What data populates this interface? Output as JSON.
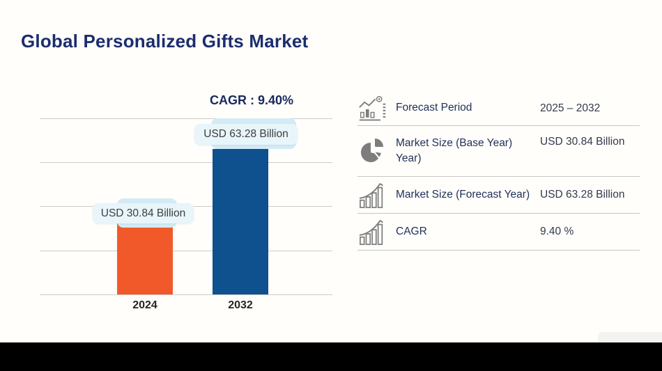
{
  "title": "Global Personalized Gifts Market",
  "chart_data": {
    "type": "bar",
    "title": "Global Personalized Gifts Market",
    "annotation": "CAGR : 9.40%",
    "categories": [
      "2024",
      "2032"
    ],
    "values": [
      30.84,
      63.28
    ],
    "unit": "USD Billion",
    "bar_labels": [
      "USD 30.84 Billion",
      "USD 63.28 Billion"
    ],
    "bar_colors": [
      "#f1592a",
      "#0f508f"
    ],
    "ylim": [
      0,
      80
    ],
    "grid": true,
    "gridline_count": 5,
    "legend_position": "none",
    "xlabel": "",
    "ylabel": ""
  },
  "info_table": {
    "rows": [
      {
        "icon": "forecast-trend-icon",
        "label": "Forecast Period",
        "value": "2025 – 2032"
      },
      {
        "icon": "pie-chart-icon",
        "label": "Market Size (Base Year) Year)",
        "value": "USD 30.84 Billion"
      },
      {
        "icon": "growth-bars-icon",
        "label": "Market Size (Forecast Year)",
        "value": "USD 63.28 Billion"
      },
      {
        "icon": "growth-bars-icon",
        "label": "CAGR",
        "value": "9.40 %"
      }
    ]
  },
  "colors": {
    "accent_orange": "#f1592a",
    "accent_blue": "#0f508f",
    "navy_text": "#1c2d6e",
    "pill_bg": "#e8f5fa",
    "pill_back_bg": "#d3ebf4",
    "gridline": "#cbcbcb",
    "divider": "#c6c6c6",
    "icon_gray": "#7d7d7d"
  }
}
